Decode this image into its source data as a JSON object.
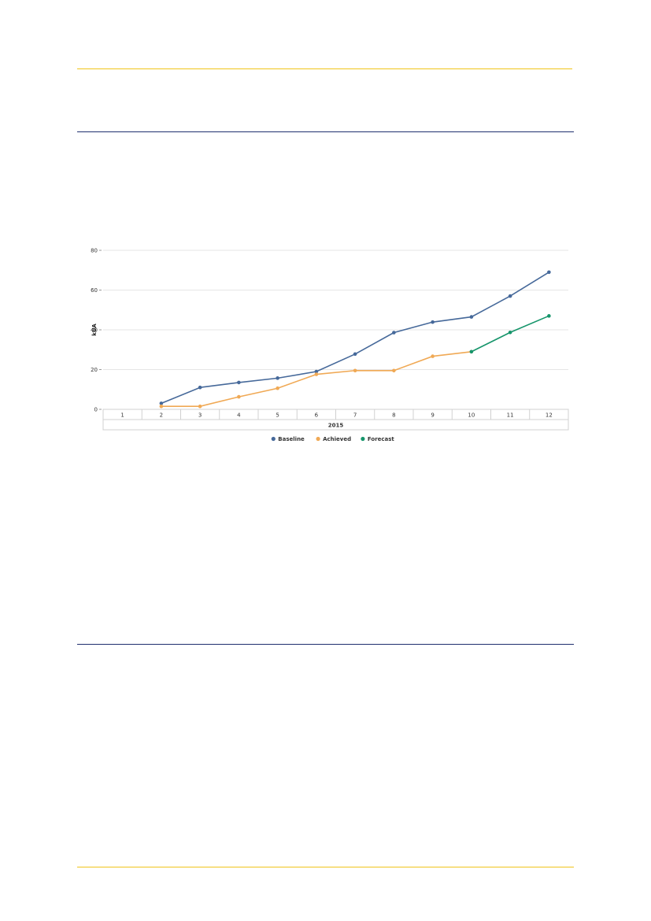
{
  "colors": {
    "baseline": "#46699a",
    "achieved": "#f0a955",
    "forecast": "#16956b",
    "gold_rule": "#f0c419",
    "navy_rule": "#1f2f6e"
  },
  "chart_data": {
    "type": "line",
    "ylabel": "kUA",
    "ylim": [
      0,
      80
    ],
    "yticks": [
      0,
      20,
      40,
      60,
      80
    ],
    "categories": [
      "1",
      "2",
      "3",
      "4",
      "5",
      "6",
      "7",
      "8",
      "9",
      "10",
      "11",
      "12"
    ],
    "group_label": "2015",
    "grid": true,
    "legend_position": "bottom",
    "series": [
      {
        "name": "Baseline",
        "values": [
          null,
          3,
          11,
          13.5,
          15.7,
          19,
          27.8,
          38.6,
          43.9,
          46.5,
          57,
          69
        ]
      },
      {
        "name": "Achieved",
        "values": [
          null,
          1.5,
          1.5,
          6.3,
          10.6,
          17.6,
          19.5,
          19.5,
          26.7,
          29,
          null,
          null
        ]
      },
      {
        "name": "Forecast",
        "values": [
          null,
          null,
          null,
          null,
          null,
          null,
          null,
          null,
          null,
          29,
          38.7,
          47
        ]
      }
    ]
  }
}
